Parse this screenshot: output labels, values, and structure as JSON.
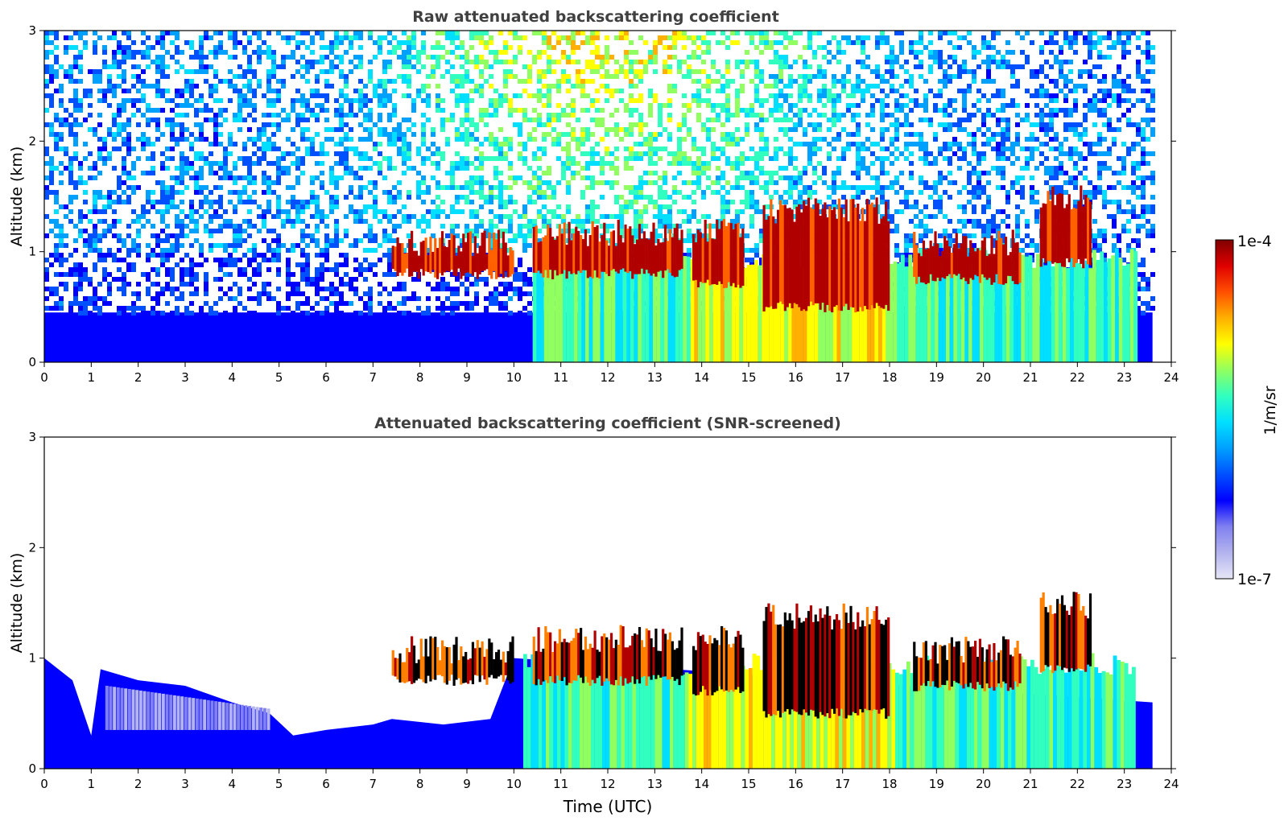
{
  "chart_data": [
    {
      "type": "heatmap",
      "title": "Raw attenuated backscattering coefficient",
      "xlabel": "",
      "ylabel": "Altitude (km)",
      "xlim": [
        0,
        24
      ],
      "ylim": [
        0,
        3
      ],
      "xticks": [
        "0",
        "1",
        "2",
        "3",
        "4",
        "5",
        "6",
        "7",
        "8",
        "9",
        "10",
        "11",
        "12",
        "13",
        "14",
        "15",
        "16",
        "17",
        "18",
        "19",
        "20",
        "21",
        "22",
        "23",
        "24"
      ],
      "yticks": [
        "0",
        "1",
        "2",
        "3"
      ],
      "data_end_hour": 23.6,
      "cloud_layer": [
        {
          "start": 7.4,
          "end": 10.0,
          "base_km": 0.8,
          "top_km": 1.2
        },
        {
          "start": 10.4,
          "end": 13.6,
          "base_km": 0.8,
          "top_km": 1.3
        },
        {
          "start": 13.8,
          "end": 14.9,
          "base_km": 0.7,
          "top_km": 1.3
        },
        {
          "start": 15.3,
          "end": 18.0,
          "base_km": 0.5,
          "top_km": 1.5
        },
        {
          "start": 18.5,
          "end": 20.8,
          "base_km": 0.75,
          "top_km": 1.2
        },
        {
          "start": 21.2,
          "end": 22.3,
          "base_km": 0.9,
          "top_km": 1.6
        }
      ]
    },
    {
      "type": "heatmap",
      "title": "Attenuated backscattering coefficient (SNR-screened)",
      "xlabel": "Time (UTC)",
      "ylabel": "Altitude (km)",
      "xlim": [
        0,
        24
      ],
      "ylim": [
        0,
        3
      ],
      "xticks": [
        "0",
        "1",
        "2",
        "3",
        "4",
        "5",
        "6",
        "7",
        "8",
        "9",
        "10",
        "11",
        "12",
        "13",
        "14",
        "15",
        "16",
        "17",
        "18",
        "19",
        "20",
        "21",
        "22",
        "23",
        "24"
      ],
      "yticks": [
        "0",
        "1",
        "2",
        "3"
      ],
      "data_end_hour": 23.6,
      "boundary_layer_top_km": [
        [
          0,
          1.0
        ],
        [
          0.6,
          0.8
        ],
        [
          1.0,
          0.3
        ],
        [
          1.2,
          0.9
        ],
        [
          2.0,
          0.8
        ],
        [
          3.0,
          0.75
        ],
        [
          4.0,
          0.6
        ],
        [
          4.8,
          0.5
        ],
        [
          5.3,
          0.3
        ],
        [
          6.0,
          0.35
        ],
        [
          7.0,
          0.4
        ],
        [
          7.4,
          0.45
        ],
        [
          8.5,
          0.4
        ],
        [
          9.5,
          0.45
        ],
        [
          10.0,
          1.0
        ],
        [
          23.6,
          0.6
        ]
      ]
    }
  ],
  "colorbar": {
    "label": "1/m/sr",
    "max_label": "1e-4",
    "min_label": "1e-7",
    "colors": [
      "#e6e6f7",
      "#b3b3ee",
      "#8080f0",
      "#0000ff",
      "#0050ff",
      "#00a0ff",
      "#00dfff",
      "#30ffc0",
      "#90ff60",
      "#ffff00",
      "#ffb000",
      "#ff5000",
      "#e00000",
      "#800000"
    ]
  }
}
